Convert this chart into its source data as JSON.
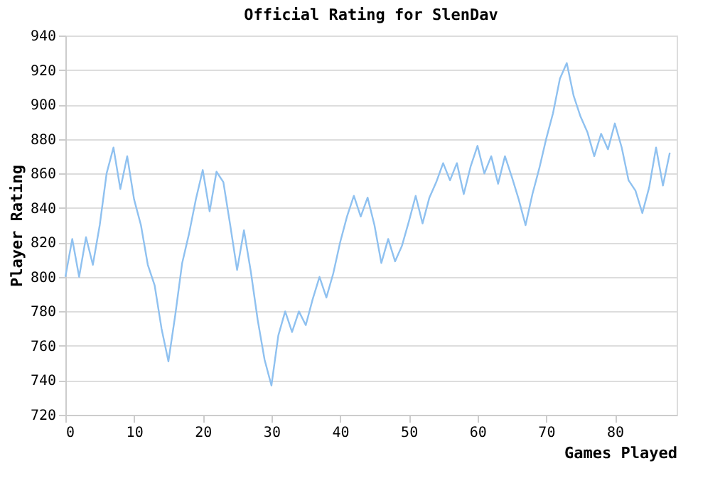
{
  "chart_data": {
    "type": "line",
    "title": "Official Rating for SlenDav",
    "xlabel": "Games Played",
    "ylabel": "Player Rating",
    "x": [
      0,
      1,
      2,
      3,
      4,
      5,
      6,
      7,
      8,
      9,
      10,
      11,
      12,
      13,
      14,
      15,
      16,
      17,
      18,
      19,
      20,
      21,
      22,
      23,
      24,
      25,
      26,
      27,
      28,
      29,
      30,
      31,
      32,
      33,
      34,
      35,
      36,
      37,
      38,
      39,
      40,
      41,
      42,
      43,
      44,
      45,
      46,
      47,
      48,
      49,
      50,
      51,
      52,
      53,
      54,
      55,
      56,
      57,
      58,
      59,
      60,
      61,
      62,
      63,
      64,
      65,
      66,
      67,
      68,
      69,
      70,
      71,
      72,
      73,
      74,
      75,
      76,
      77,
      78,
      79,
      80,
      81,
      82,
      83,
      84,
      85,
      86,
      87,
      88
    ],
    "series": [
      {
        "color": "#8fc1f0",
        "values": [
          800,
          822,
          800,
          823,
          807,
          830,
          860,
          875,
          851,
          870,
          845,
          830,
          807,
          795,
          770,
          751,
          778,
          808,
          825,
          845,
          862,
          838,
          861,
          855,
          830,
          804,
          827,
          803,
          775,
          752,
          737,
          766,
          780,
          768,
          780,
          772,
          787,
          800,
          788,
          802,
          820,
          835,
          847,
          835,
          846,
          830,
          808,
          822,
          809,
          818,
          832,
          847,
          831,
          846,
          855,
          866,
          856,
          866,
          848,
          864,
          876,
          860,
          870,
          854,
          870,
          858,
          845,
          830,
          848,
          863,
          880,
          895,
          915,
          924,
          905,
          893,
          884,
          870,
          883,
          874,
          889,
          875,
          856,
          850,
          837,
          852,
          875,
          853,
          872
        ]
      }
    ],
    "xlim": [
      0,
      89
    ],
    "xticks": [
      0,
      10,
      20,
      30,
      40,
      50,
      60,
      70,
      80
    ],
    "ylim": [
      720,
      940
    ],
    "yticks": [
      720,
      740,
      760,
      780,
      800,
      820,
      840,
      860,
      880,
      900,
      920,
      940
    ],
    "grid": "y",
    "legend": false,
    "marker": "none",
    "line_style": "solid"
  }
}
